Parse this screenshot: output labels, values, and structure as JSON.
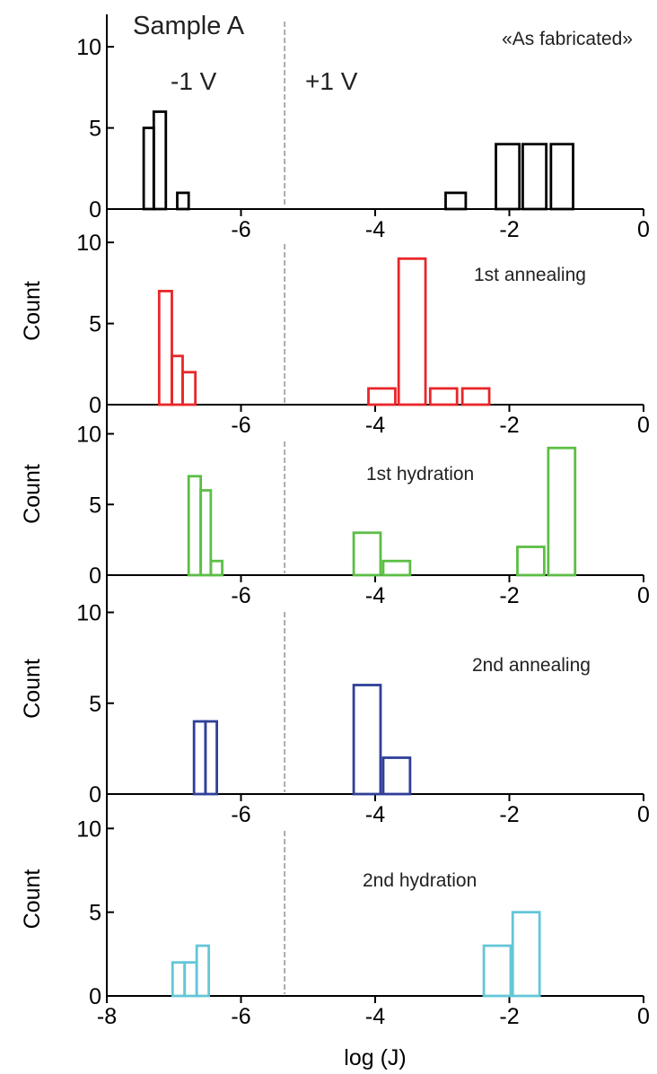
{
  "figure": {
    "sample_title": "Sample A",
    "left_bias": "-1 V",
    "right_bias": "+1 V",
    "xlabel": "log (J)",
    "ylabel": "Count"
  },
  "chart_data": {
    "type": "bar",
    "subtype": "histogram",
    "xlim": [
      -8,
      0
    ],
    "ylim": [
      0,
      12
    ],
    "xticks": [
      -8,
      -6,
      -4,
      -2,
      0
    ],
    "xtick_labels": [
      "-8",
      "-6",
      "-4",
      "-2",
      "0"
    ],
    "yticks": [
      0,
      5,
      10
    ],
    "ytick_labels": [
      "0",
      "5",
      "10"
    ],
    "divider_x": -5.35,
    "panels": [
      {
        "label": "«As fabricated»",
        "color": "#000000",
        "show_ylabel": false,
        "bars": [
          {
            "x0": -7.45,
            "x1": -7.3,
            "count": 5
          },
          {
            "x0": -7.3,
            "x1": -7.12,
            "count": 6
          },
          {
            "x0": -6.95,
            "x1": -6.78,
            "count": 1
          },
          {
            "x0": -2.95,
            "x1": -2.65,
            "count": 1
          },
          {
            "x0": -2.2,
            "x1": -1.85,
            "count": 4
          },
          {
            "x0": -1.8,
            "x1": -1.45,
            "count": 4
          },
          {
            "x0": -1.38,
            "x1": -1.05,
            "count": 4
          }
        ]
      },
      {
        "label": "1st annealing",
        "color": "#e8262a",
        "show_ylabel": true,
        "bars": [
          {
            "x0": -7.22,
            "x1": -7.03,
            "count": 7
          },
          {
            "x0": -7.03,
            "x1": -6.87,
            "count": 3
          },
          {
            "x0": -6.87,
            "x1": -6.68,
            "count": 2
          },
          {
            "x0": -4.1,
            "x1": -3.7,
            "count": 1
          },
          {
            "x0": -3.65,
            "x1": -3.25,
            "count": 9
          },
          {
            "x0": -3.18,
            "x1": -2.78,
            "count": 1
          },
          {
            "x0": -2.7,
            "x1": -2.3,
            "count": 1
          }
        ]
      },
      {
        "label": "1st hydration",
        "color": "#5cbe46",
        "show_ylabel": true,
        "bars": [
          {
            "x0": -6.78,
            "x1": -6.6,
            "count": 7
          },
          {
            "x0": -6.6,
            "x1": -6.45,
            "count": 6
          },
          {
            "x0": -6.45,
            "x1": -6.28,
            "count": 1
          },
          {
            "x0": -4.32,
            "x1": -3.92,
            "count": 3
          },
          {
            "x0": -3.88,
            "x1": -3.48,
            "count": 1
          },
          {
            "x0": -1.88,
            "x1": -1.48,
            "count": 2
          },
          {
            "x0": -1.42,
            "x1": -1.02,
            "count": 9
          }
        ]
      },
      {
        "label": "2nd annealing",
        "color": "#2f3f98",
        "show_ylabel": true,
        "bars": [
          {
            "x0": -6.7,
            "x1": -6.53,
            "count": 4
          },
          {
            "x0": -6.53,
            "x1": -6.36,
            "count": 4
          },
          {
            "x0": -4.32,
            "x1": -3.92,
            "count": 6
          },
          {
            "x0": -3.88,
            "x1": -3.48,
            "count": 2
          }
        ]
      },
      {
        "label": "2nd hydration",
        "color": "#63c6d8",
        "show_ylabel": true,
        "bars": [
          {
            "x0": -7.02,
            "x1": -6.84,
            "count": 2
          },
          {
            "x0": -6.84,
            "x1": -6.66,
            "count": 2
          },
          {
            "x0": -6.66,
            "x1": -6.48,
            "count": 3
          },
          {
            "x0": -2.38,
            "x1": -1.98,
            "count": 3
          },
          {
            "x0": -1.95,
            "x1": -1.55,
            "count": 5
          }
        ]
      }
    ]
  }
}
